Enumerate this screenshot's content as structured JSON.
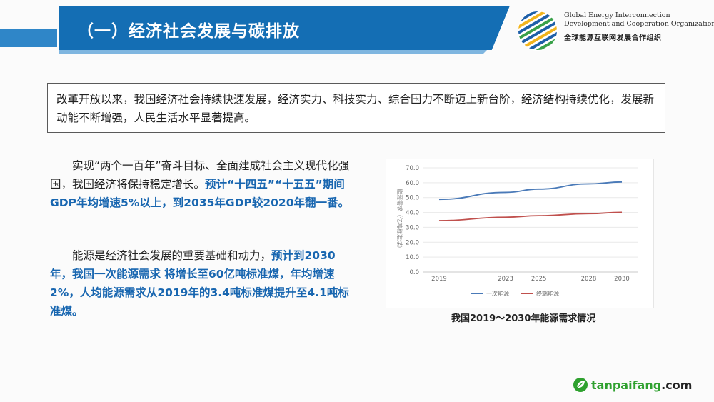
{
  "header": {
    "title": "（一）经济社会发展与碳排放",
    "org_en_line1": "Global Energy Interconnection",
    "org_en_line2": "Development and Cooperation Organization",
    "org_cn": "全球能源互联网发展合作组织"
  },
  "intro": {
    "text": "改革开放以来，我国经济社会持续快速发展，经济实力、科技实力、综合国力不断迈上新台阶，经济结构持续优化，发展新动能不断增强，人民生活水平显著提高。"
  },
  "para1": {
    "normal": "实现“两个一百年”奋斗目标、全面建成社会主义现代化强国，我国经济将保持稳定增长。",
    "highlight": "预计“十四五”“十五五”期间GDP年均增速5%以上，到2035年GDP较2020年翻一番。"
  },
  "para2": {
    "normal": "能源是经济社会发展的重要基础和动力，",
    "highlight": "预计到2030年，我国一次能源需求",
    "highlight2": "将增长至60亿吨标准煤，年均增速2%，人均能源需求从2019年的3.4吨标准煤提升至4.1吨标准煤。"
  },
  "chart_data": {
    "type": "line",
    "title": "",
    "caption": "我国2019～2030年能源需求情况",
    "ylabel": "能源需求（亿吨标准煤）",
    "xlabel": "",
    "x": [
      2019,
      2023,
      2025,
      2028,
      2030
    ],
    "x_ticks": [
      "2019",
      "2023",
      "2025",
      "2028",
      "2030"
    ],
    "ylim": [
      0,
      70
    ],
    "y_ticks": [
      "0.0",
      "10.0",
      "20.0",
      "30.0",
      "40.0",
      "50.0",
      "60.0",
      "70.0"
    ],
    "grid": true,
    "legend_position": "bottom",
    "series": [
      {
        "name": "一次能源",
        "color": "#4a7ab8",
        "values": [
          48.8,
          53.5,
          55.7,
          59.2,
          60.5
        ]
      },
      {
        "name": "终端能源",
        "color": "#c0504d",
        "values": [
          34.5,
          36.8,
          37.8,
          39.2,
          40.1
        ]
      }
    ]
  },
  "footer": {
    "site_name": "tanpaifang",
    "site_suffix": ".com"
  },
  "colors": {
    "header_blue": "#146eb4",
    "highlight_blue": "#1866b0",
    "footer_green": "#2fa12f"
  }
}
